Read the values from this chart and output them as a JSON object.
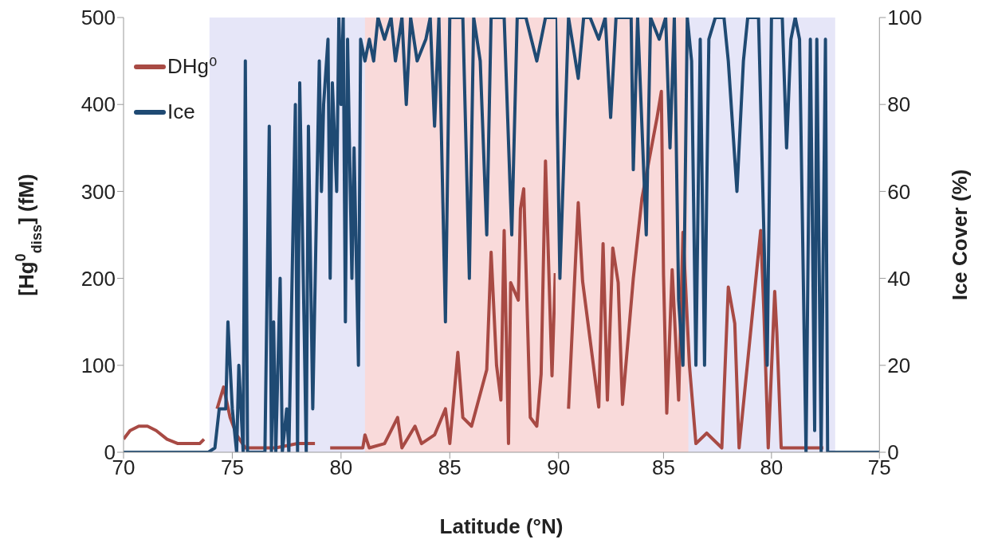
{
  "chart_data": [
    {
      "type": "line",
      "xlabel": "Latitude (°N)",
      "ylabel": "[Hg$^{0}$$_{diss}$] (fM)",
      "xlim": [
        70,
        90
      ],
      "xticks": [
        70,
        75,
        80,
        85,
        90
      ],
      "ylim": [
        0,
        500
      ],
      "yticks": [
        0,
        100,
        200,
        300,
        400,
        500
      ],
      "y2lim": [
        0,
        100
      ],
      "legend": "top left",
      "line_style": "solid",
      "bands": [
        {
          "axis": "x",
          "from": 73.95,
          "to": 90,
          "color": "#e6e6f8"
        },
        {
          "axis": "x",
          "from": 81.1,
          "to": 90,
          "color": "#f9dada"
        }
      ],
      "series": [
        {
          "name": "DHg⁰",
          "color": "#a84a44",
          "x": [
            70,
            70.3,
            70.7,
            71.1,
            71.5,
            72.0,
            72.5,
            73.0,
            73.5,
            73.7,
            73.9,
            74.3,
            74.6,
            74.9,
            75.2,
            75.6,
            76.0,
            77.0,
            78.0,
            78.8,
            79.1,
            79.5,
            80.5,
            81.0,
            81.1,
            81.3,
            82.0,
            82.6,
            82.8,
            83.4,
            83.7,
            84.3,
            84.8,
            85.0,
            85.37,
            85.6,
            86.0,
            86.7,
            86.9,
            87.15,
            87.35,
            87.5,
            87.7,
            87.8,
            88.15,
            88.25,
            88.4,
            88.7,
            89.0,
            89.2,
            89.4,
            89.7,
            89.85
          ],
          "values": [
            15,
            25,
            30,
            30,
            25,
            15,
            10,
            10,
            10,
            15,
            null,
            50,
            75,
            40,
            20,
            5,
            5,
            5,
            10,
            10,
            null,
            5,
            5,
            5,
            20,
            5,
            10,
            40,
            5,
            30,
            10,
            20,
            50,
            10,
            115,
            40,
            30,
            95,
            230,
            100,
            60,
            255,
            10,
            195,
            175,
            280,
            303,
            40,
            30,
            90,
            335,
            88,
            206
          ]
        },
        {
          "name": "Ice",
          "color": "#1f4a73",
          "axis": "y2",
          "x": [
            70,
            73.9,
            74.2,
            74.4,
            74.7,
            74.8,
            75.0,
            75.2,
            75.3,
            75.5,
            75.6,
            75.7,
            76.5,
            76.7,
            76.8,
            76.9,
            77.0,
            77.2,
            77.3,
            77.5,
            77.6,
            77.9,
            78.0,
            78.1,
            78.3,
            78.4,
            78.5,
            78.7,
            79.0,
            79.1,
            79.2,
            79.4,
            79.5,
            79.6,
            79.8,
            79.9,
            80.0,
            80.1,
            80.2,
            80.3,
            80.5,
            80.6,
            80.8,
            80.9,
            81.1,
            81.3,
            81.5,
            81.7,
            82.0,
            82.3,
            82.5,
            82.8,
            83.0,
            83.2,
            83.5,
            83.9,
            84.1,
            84.3,
            84.5,
            84.8,
            85.0,
            85.6,
            85.9,
            86.1,
            86.4,
            86.7,
            86.9,
            87.5,
            87.85,
            88.1,
            88.5,
            89.0,
            89.4,
            90
          ],
          "values": [
            0,
            0,
            1,
            10,
            10,
            30,
            10,
            0,
            20,
            0,
            90,
            0,
            0,
            75,
            0,
            30,
            0,
            40,
            0,
            10,
            0,
            80,
            0,
            85,
            30,
            0,
            75,
            10,
            90,
            60,
            80,
            95,
            40,
            85,
            60,
            100,
            80,
            100,
            30,
            95,
            40,
            70,
            20,
            95,
            90,
            95,
            90,
            100,
            95,
            100,
            90,
            100,
            80,
            100,
            90,
            95,
            100,
            75,
            100,
            30,
            100,
            100,
            40,
            100,
            90,
            50,
            100,
            100,
            50,
            100,
            100,
            90,
            100,
            100
          ]
        }
      ]
    },
    {
      "type": "line",
      "y2label": "Ice Cover (%)",
      "xlim": [
        90,
        75
      ],
      "xticks": [
        85,
        80,
        75
      ],
      "ylim": [
        0,
        500
      ],
      "y2lim": [
        0,
        100
      ],
      "y2ticks": [
        0,
        20,
        40,
        60,
        80,
        100
      ],
      "line_style": "solid",
      "bands": [
        {
          "axis": "x",
          "from": 90,
          "to": 77.05,
          "color": "#e6e6f8"
        },
        {
          "axis": "x",
          "from": 90,
          "to": 83.85,
          "color": "#f9dada"
        }
      ],
      "series": [
        {
          "color": "#a84a44",
          "x": [
            89.4,
            88.95,
            88.75,
            88.0,
            87.8,
            87.6,
            87.35,
            87.1,
            86.9,
            86.4,
            86.0,
            85.3,
            85.1,
            85.0,
            84.85,
            84.6,
            84.3,
            84.1,
            83.8,
            83.5,
            83.0,
            82.3,
            82.0,
            81.7,
            81.5,
            80.5,
            80.35,
            80.15,
            79.85,
            79.75,
            79.55,
            78.5,
            77.6
          ],
          "values": [
            50,
            287,
            197,
            52,
            240,
            60,
            235,
            195,
            55,
            200,
            292,
            385,
            415,
            204,
            45,
            210,
            60,
            253,
            100,
            10,
            22,
            5,
            190,
            148,
            5,
            255,
            160,
            5,
            185,
            137,
            5,
            5,
            5
          ]
        },
        {
          "color": "#1f4a73",
          "axis": "y2",
          "x": [
            90,
            89.8,
            89.4,
            88.95,
            88.7,
            88.4,
            88.0,
            87.7,
            87.45,
            87.2,
            86.5,
            86.4,
            86.2,
            85.8,
            85.6,
            85.2,
            84.9,
            84.7,
            84.5,
            84.3,
            84.1,
            83.9,
            83.7,
            83.5,
            83.3,
            83.1,
            83.0,
            82.9,
            82.6,
            82.2,
            82.0,
            81.6,
            81.3,
            81.1,
            80.6,
            80.4,
            80.2,
            80.0,
            79.5,
            79.3,
            79.1,
            78.9,
            78.7,
            78.4,
            78.2,
            78.0,
            77.9,
            77.7,
            77.5,
            77.4,
            75
          ],
          "values": [
            100,
            40,
            100,
            86,
            100,
            100,
            95,
            100,
            77,
            100,
            100,
            65,
            100,
            50,
            100,
            95,
            100,
            70,
            100,
            35,
            20,
            100,
            90,
            20,
            95,
            20,
            60,
            95,
            100,
            100,
            90,
            60,
            90,
            100,
            100,
            60,
            20,
            100,
            100,
            70,
            95,
            100,
            95,
            0,
            95,
            5,
            95,
            0,
            95,
            0,
            0
          ]
        }
      ]
    }
  ]
}
